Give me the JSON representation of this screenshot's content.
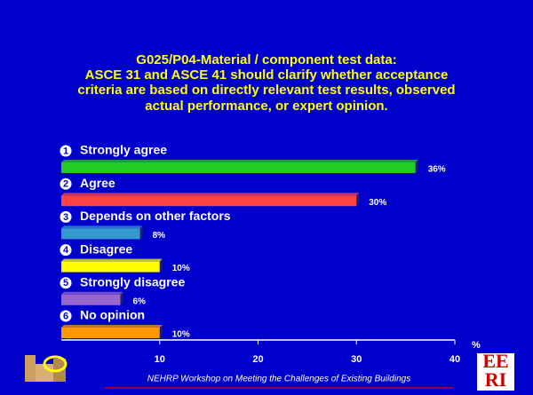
{
  "chart_data": {
    "type": "bar",
    "orientation": "horizontal",
    "title": [
      "G025/P04-Material / component test data:",
      "ASCE 31 and ASCE 41 should clarify whether acceptance",
      "criteria are based on directly relevant test results, observed",
      "actual performance, or expert opinion."
    ],
    "category_numbers": [
      "1",
      "2",
      "3",
      "4",
      "5",
      "6"
    ],
    "categories": [
      "Strongly agree",
      "Agree",
      "Depends on other factors",
      "Disagree",
      "Strongly disagree",
      "No opinion"
    ],
    "values": [
      36,
      30,
      8,
      10,
      6,
      10
    ],
    "value_labels": [
      "36%",
      "30%",
      "8%",
      "10%",
      "6%",
      "10%"
    ],
    "colors": [
      "#22cc22",
      "#ff4444",
      "#3399cc",
      "#ffff00",
      "#9966cc",
      "#ff9900"
    ],
    "xlim": [
      0,
      40
    ],
    "xticks": [
      10,
      20,
      30,
      40
    ],
    "x_label": "%",
    "footer": "NEHRP Workshop on Meeting the Challenges of Existing Buildings",
    "logo_text": [
      "EE",
      "RI"
    ]
  }
}
